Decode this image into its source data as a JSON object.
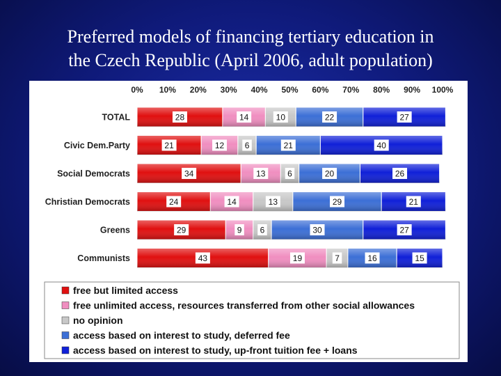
{
  "slide": {
    "title_line1": "Preferred models of financing tertiary education in",
    "title_line2": "the Czech Republic (April 2006, adult population)"
  },
  "chart_data": {
    "type": "bar",
    "orientation": "horizontal",
    "stacked": "100%",
    "title": "",
    "xlabel": "",
    "ylabel": "",
    "xlim": [
      0,
      100
    ],
    "x_ticks": [
      "0%",
      "10%",
      "20%",
      "30%",
      "40%",
      "50%",
      "60%",
      "70%",
      "80%",
      "90%",
      "100%"
    ],
    "categories": [
      "TOTAL",
      "Civic Dem.Party",
      "Social Democrats",
      "Christian Democrats",
      "Greens",
      "Communists"
    ],
    "series": [
      {
        "name": "free but limited access",
        "color": "#e01010",
        "values": [
          28,
          21,
          34,
          24,
          29,
          43
        ]
      },
      {
        "name": "free unlimited access, resources transferred from other social allowances",
        "color": "#f08ec0",
        "values": [
          14,
          12,
          13,
          14,
          9,
          19
        ]
      },
      {
        "name": "no opinion",
        "color": "#c8c8c8",
        "values": [
          10,
          6,
          6,
          13,
          6,
          7
        ]
      },
      {
        "name": "access based on interest to study, deferred fee",
        "color": "#3c6fd6",
        "values": [
          22,
          21,
          20,
          29,
          30,
          16
        ]
      },
      {
        "name": "access based on interest to study, up-front tuition fee + loans",
        "color": "#1020d8",
        "values": [
          27,
          40,
          26,
          21,
          27,
          15
        ]
      }
    ],
    "legend_position": "bottom",
    "grid": false
  }
}
